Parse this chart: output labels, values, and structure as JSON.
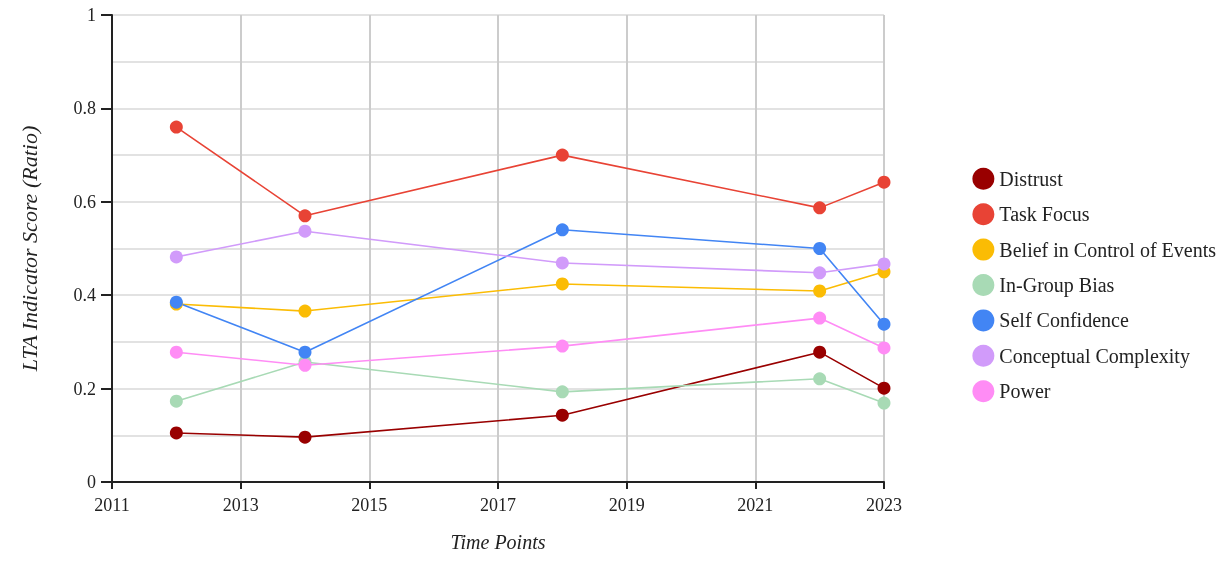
{
  "chart_data": {
    "type": "line",
    "xlabel": "Time Points",
    "ylabel": "LTA Indicator Score (Ratio)",
    "x": [
      2012,
      2014,
      2018,
      2022,
      2023
    ],
    "series": [
      {
        "name": "Distrust",
        "color": "#990000",
        "values": [
          0.105,
          0.096,
          0.143,
          0.278,
          0.201
        ]
      },
      {
        "name": "Task Focus",
        "color": "#e84335",
        "values": [
          0.76,
          0.57,
          0.7,
          0.587,
          0.642
        ]
      },
      {
        "name": "Belief in Control of Events",
        "color": "#fbbc04",
        "values": [
          0.381,
          0.366,
          0.424,
          0.409,
          0.45
        ]
      },
      {
        "name": "In-Group Bias",
        "color": "#a8dab5",
        "values": [
          0.173,
          0.257,
          0.193,
          0.221,
          0.169
        ]
      },
      {
        "name": "Self Confidence",
        "color": "#4285f4",
        "values": [
          0.385,
          0.278,
          0.54,
          0.5,
          0.338
        ]
      },
      {
        "name": "Conceptual Complexity",
        "color": "#d19bfa",
        "values": [
          0.482,
          0.537,
          0.469,
          0.448,
          0.467
        ]
      },
      {
        "name": "Power",
        "color": "#ff8cf5",
        "values": [
          0.278,
          0.25,
          0.291,
          0.351,
          0.287
        ]
      }
    ],
    "xlim": [
      2011,
      2023
    ],
    "xticks": [
      2011,
      2013,
      2015,
      2017,
      2019,
      2021,
      2023
    ],
    "ylim": [
      0,
      1
    ],
    "yticks": [
      0,
      {
        "value": 0.1,
        "label": null
      },
      0.2,
      {
        "value": 0.3,
        "label": null
      },
      0.4,
      {
        "value": 0.5,
        "label": null
      },
      0.6,
      {
        "value": 0.7,
        "label": null
      },
      0.8,
      {
        "value": 0.9,
        "label": null
      },
      1
    ],
    "grid": true,
    "legend": "right",
    "marker": "circle",
    "line_style": "solid"
  }
}
